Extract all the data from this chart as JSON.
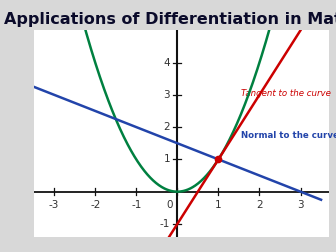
{
  "title": "Applications of Differentiation in Mat",
  "title_bg_color": "#29ABE2",
  "title_text_color": "#0a0a2a",
  "title_fontsize": 11.5,
  "fig_bg_color": "#d8d8d8",
  "plot_bg_color": "#ffffff",
  "xlim": [
    -3.5,
    3.7
  ],
  "ylim": [
    -1.4,
    5.0
  ],
  "xticks": [
    -3,
    -2,
    -1,
    0,
    1,
    2,
    3
  ],
  "yticks": [
    -1,
    1,
    2,
    3,
    4
  ],
  "curve_color": "#008040",
  "tangent_color": "#cc0000",
  "normal_color": "#2244aa",
  "axis_color": "#111111",
  "tangent_label": "Tangent to the curve",
  "normal_label": "Normal to the curve",
  "tangent_label_color": "#cc0000",
  "normal_label_color": "#2244aa",
  "point_color": "#cc0000",
  "point_x": 1,
  "point_y": 1,
  "tick_fontsize": 7.5
}
